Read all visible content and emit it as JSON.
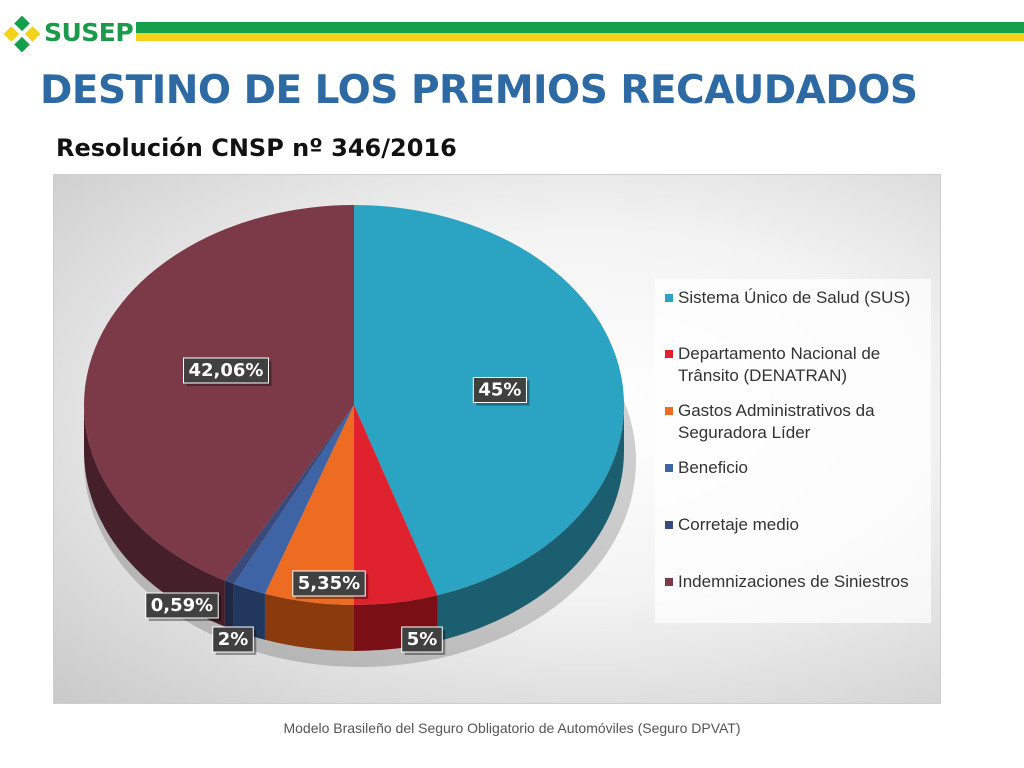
{
  "header": {
    "logo_text": "SUSEP",
    "title": "DESTINO DE LOS PREMIOS RECAUDADOS",
    "subtitle": "Resolución CNSP nº 346/2016"
  },
  "footer": {
    "text": "Modelo Brasileño del Seguro Obligatorio de Automóviles (Seguro DPVAT)"
  },
  "colors": {
    "brand_green": "#14a04a",
    "brand_yellow": "#f2d21a",
    "title_blue": "#2d6aa3"
  },
  "chart_data": {
    "type": "pie",
    "style": "3d",
    "legend_position": "right",
    "series": [
      {
        "name": "Sistema Único de Salud (SUS)",
        "value": 45,
        "label": "45%",
        "color": "#2ba3c2",
        "side_color": "#1b5e70"
      },
      {
        "name": "Departamento Nacional de Trânsito (DENATRAN)",
        "value": 5,
        "label": "5%",
        "color": "#e0222e",
        "side_color": "#7a1015"
      },
      {
        "name": "Gastos Administrativos da Seguradora Líder",
        "value": 5.35,
        "label": "5,35%",
        "color": "#ee6b22",
        "side_color": "#8a3a0c"
      },
      {
        "name": "Beneficio",
        "value": 2,
        "label": "2%",
        "color": "#3f64a6",
        "side_color": "#22375e"
      },
      {
        "name": "Corretaje medio",
        "value": 0.59,
        "label": "0,59%",
        "color": "#3a4a7a",
        "side_color": "#1f2745"
      },
      {
        "name": "Indemnizaciones de Siniestros",
        "value": 42.06,
        "label": "42,06%",
        "color": "#7c3a49",
        "side_color": "#45202a"
      }
    ]
  }
}
